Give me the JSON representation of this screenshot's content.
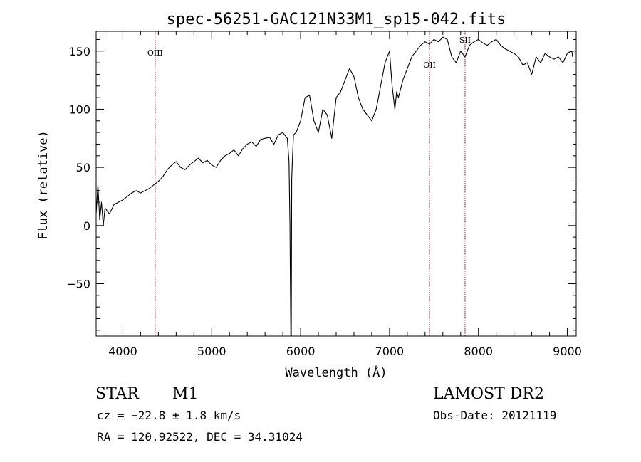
{
  "chart_data": {
    "type": "line",
    "title": "spec-56251-GAC121N33M1_sp15-042.fits",
    "xlabel": "Wavelength (Å)",
    "ylabel": "Flux (relative)",
    "xlim": [
      3700,
      9100
    ],
    "ylim": [
      -95,
      167
    ],
    "x_ticks": [
      4000,
      5000,
      6000,
      7000,
      8000,
      9000
    ],
    "x_tick_labels": [
      "4000",
      "5000",
      "6000",
      "7000",
      "8000",
      "9000"
    ],
    "y_ticks": [
      -50,
      0,
      50,
      100,
      150
    ],
    "y_tick_labels": [
      "−50",
      "0",
      "50",
      "100",
      "150"
    ],
    "series": [
      {
        "x": [
          3700,
          3720,
          3740,
          3760,
          3780,
          3800,
          3850,
          3900,
          3950,
          4000,
          4050,
          4100,
          4150,
          4200,
          4250,
          4300,
          4350,
          4400,
          4450,
          4500,
          4550,
          4600,
          4650,
          4700,
          4750,
          4800,
          4850,
          4900,
          4950,
          5000,
          5050,
          5100,
          5150,
          5200,
          5250,
          5300,
          5350,
          5400,
          5450,
          5500,
          5550,
          5600,
          5650,
          5700,
          5750,
          5800,
          5850,
          5870,
          5880,
          5890,
          5895,
          5900,
          5910,
          5920,
          5950,
          6000,
          6050,
          6100,
          6150,
          6200,
          6250,
          6300,
          6350,
          6400,
          6450,
          6500,
          6550,
          6600,
          6650,
          6700,
          6750,
          6800,
          6850,
          6900,
          6950,
          7000,
          7030,
          7060,
          7080,
          7100,
          7150,
          7200,
          7250,
          7300,
          7350,
          7400,
          7450,
          7500,
          7550,
          7600,
          7650,
          7700,
          7750,
          7800,
          7850,
          7900,
          7950,
          8000,
          8050,
          8100,
          8150,
          8200,
          8250,
          8300,
          8350,
          8400,
          8450,
          8500,
          8550,
          8600,
          8650,
          8700,
          8750,
          8800,
          8850,
          8900,
          8950,
          9000,
          9050,
          9060
        ],
        "y": [
          10,
          35,
          5,
          20,
          0,
          15,
          10,
          18,
          20,
          22,
          25,
          28,
          30,
          28,
          30,
          32,
          35,
          38,
          42,
          48,
          52,
          55,
          50,
          48,
          52,
          55,
          58,
          54,
          56,
          52,
          50,
          56,
          60,
          62,
          65,
          60,
          66,
          70,
          72,
          68,
          74,
          75,
          76,
          70,
          78,
          80,
          75,
          55,
          0,
          -95,
          -95,
          40,
          60,
          78,
          80,
          90,
          110,
          112,
          90,
          80,
          100,
          95,
          75,
          110,
          115,
          125,
          135,
          128,
          110,
          100,
          95,
          90,
          100,
          120,
          140,
          150,
          120,
          100,
          115,
          110,
          125,
          135,
          145,
          150,
          155,
          158,
          156,
          160,
          158,
          162,
          160,
          145,
          140,
          150,
          145,
          155,
          158,
          160,
          157,
          155,
          158,
          160,
          155,
          152,
          150,
          148,
          145,
          138,
          140,
          130,
          145,
          140,
          148,
          145,
          143,
          145,
          140,
          148,
          150,
          145
        ]
      }
    ],
    "lines": [
      {
        "x": 4364,
        "label": "OIII"
      },
      {
        "x": 7450,
        "label": "OII"
      },
      {
        "x": 7850,
        "label": "SII"
      }
    ],
    "grid": false,
    "legend": false
  },
  "footer": {
    "object_type": "STAR",
    "subclass": "M1",
    "cz": "cz = −22.8 ± 1.8 km/s",
    "coords": "RA = 120.92522, DEC =  34.31024",
    "survey": "LAMOST DR2",
    "obs_date": "Obs-Date: 20121119"
  },
  "colors": {
    "axes": "#000000",
    "spectrum": "#000000",
    "marker_lines": "#8b1a1a"
  }
}
